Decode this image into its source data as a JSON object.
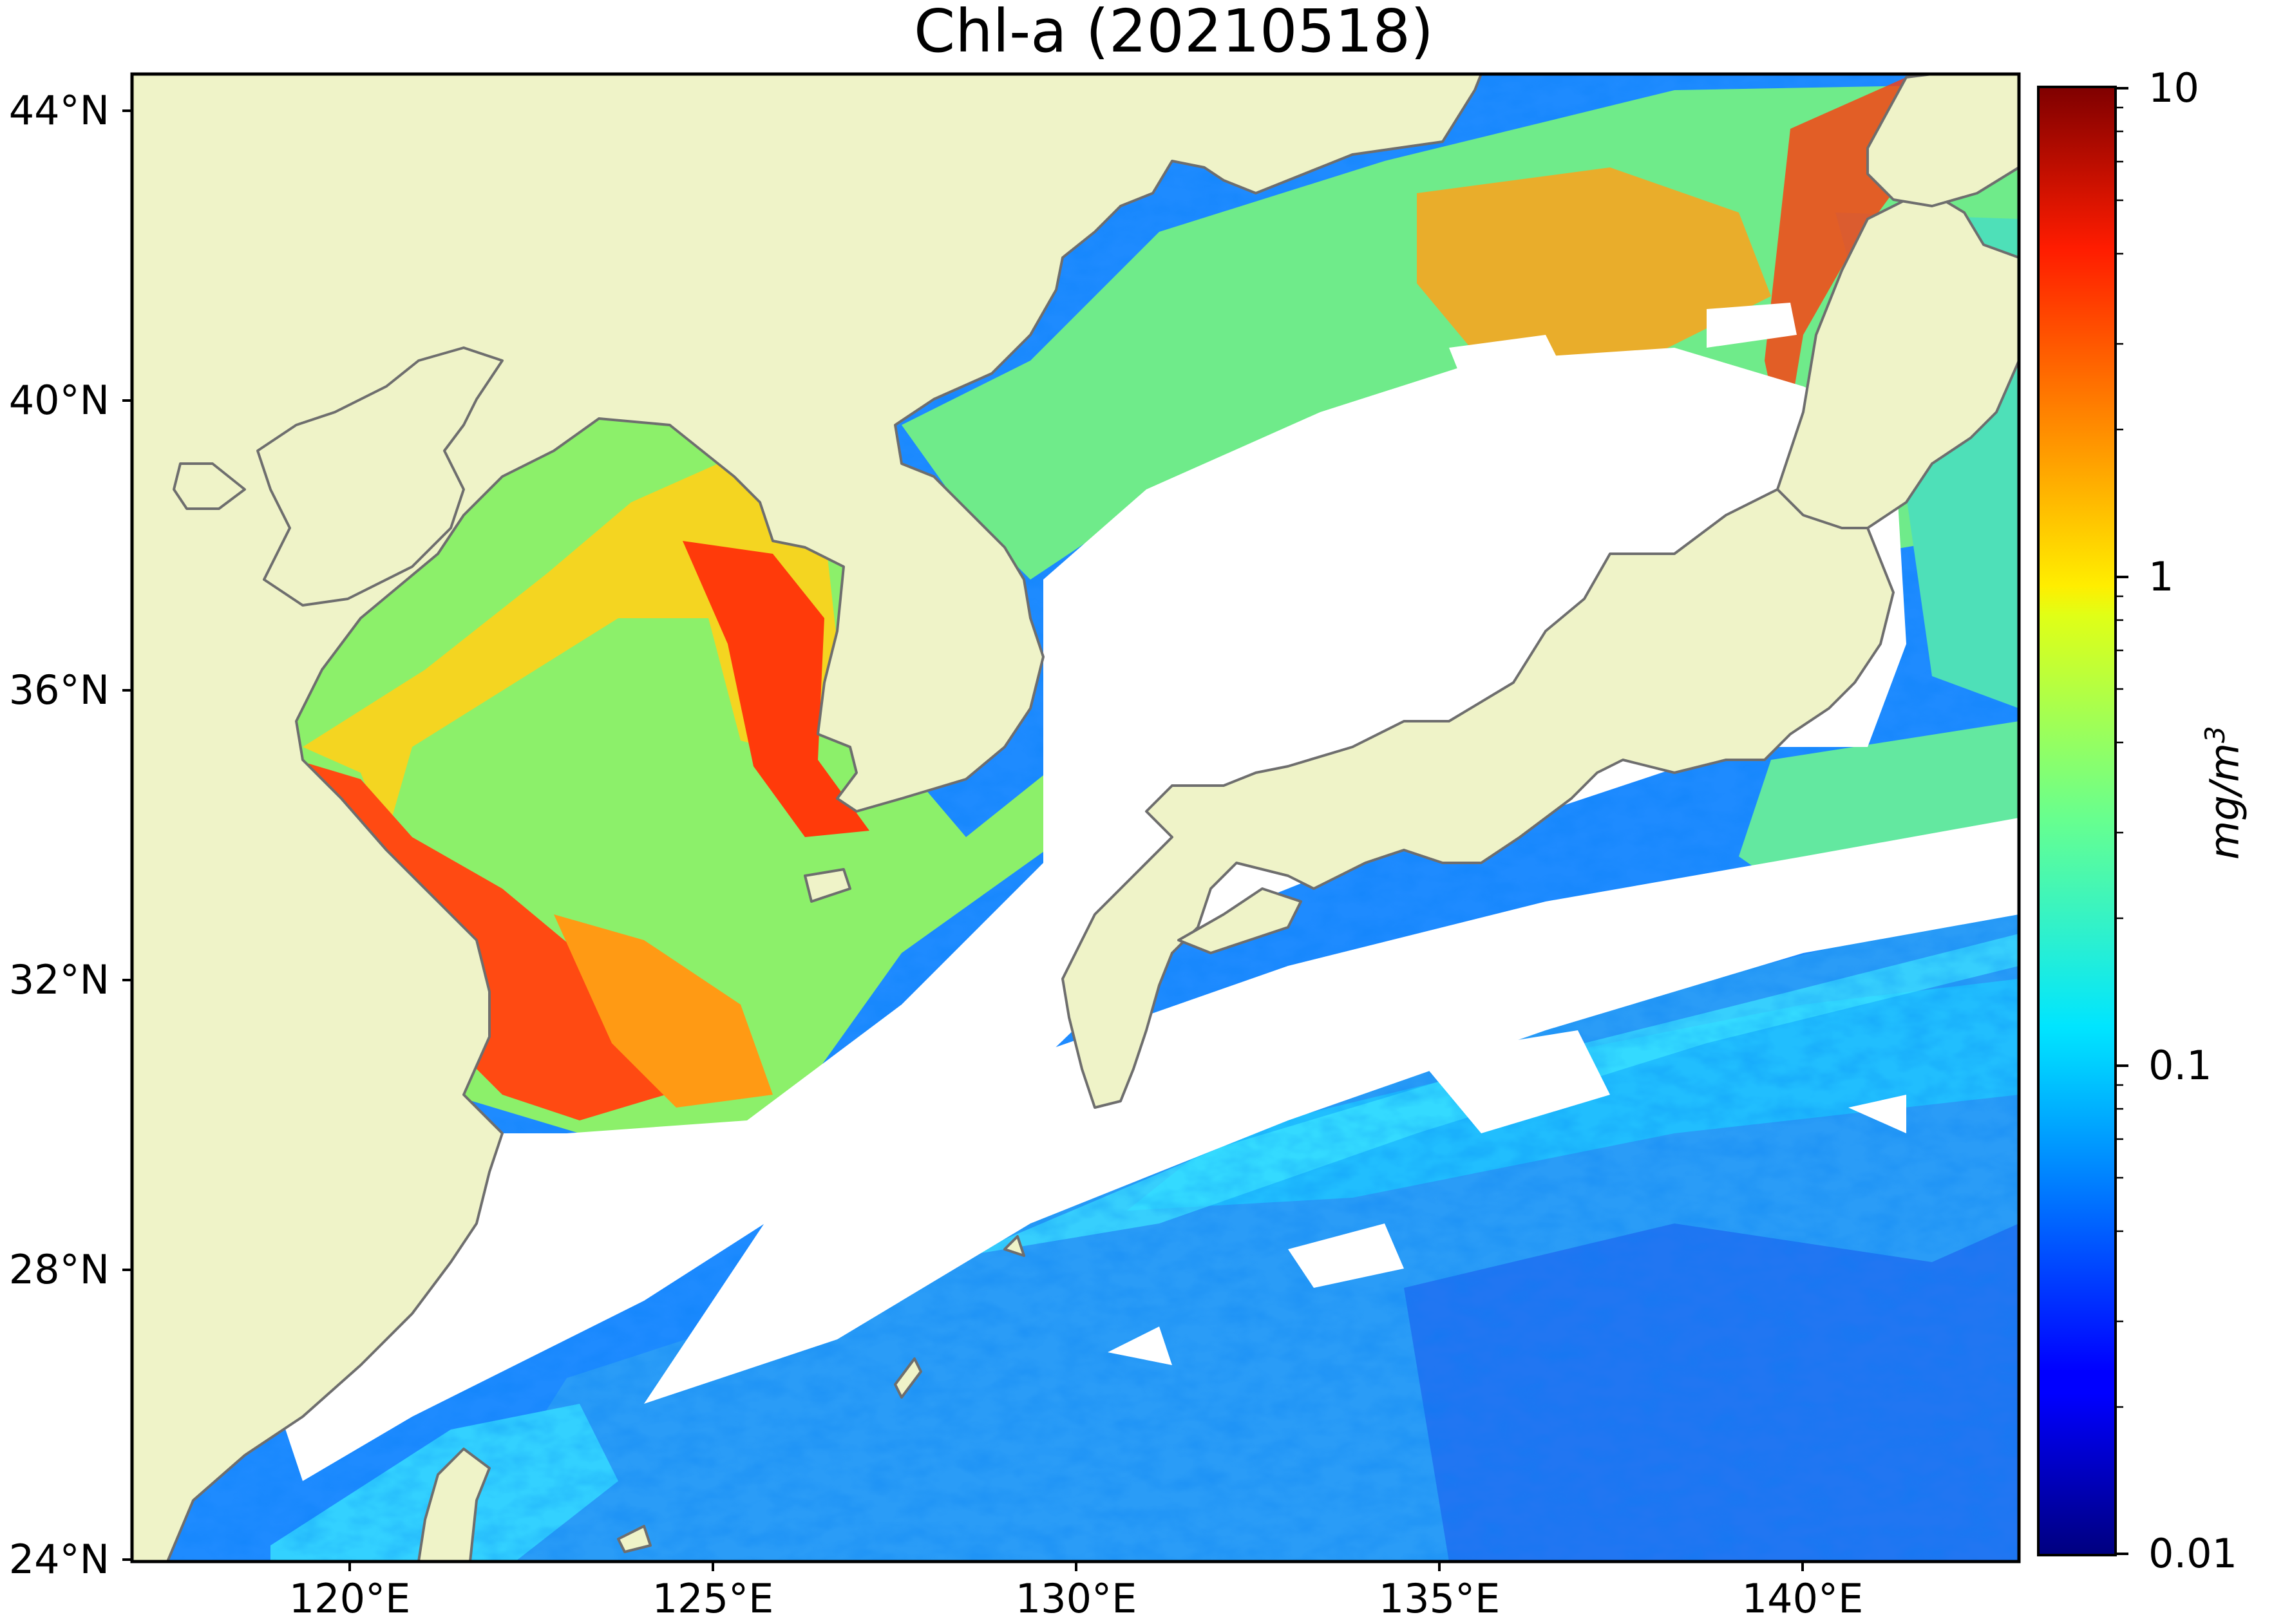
{
  "title": "Chl-a (20210518)",
  "map": {
    "type": "geographic raster",
    "variable": "Chl-a",
    "date": "20210518",
    "lon_range": [
      117,
      143
    ],
    "lat_range": [
      24,
      44.5
    ],
    "lat_ticks": [
      "44°N",
      "40°N",
      "36°N",
      "32°N",
      "28°N",
      "24°N"
    ],
    "lon_ticks": [
      "120°E",
      "125°E",
      "130°E",
      "135°E",
      "140°E"
    ],
    "land_color": "#eff3c8",
    "cloud_color": "#ffffff",
    "coast_color": "#6e6e6e"
  },
  "colorbar": {
    "scale": "log",
    "range": [
      0.01,
      10
    ],
    "colormap": "jet",
    "tick_labels": [
      "10",
      "1",
      "0.1",
      "0.01"
    ],
    "unit_base": "mg/m",
    "unit_exp": "3"
  }
}
